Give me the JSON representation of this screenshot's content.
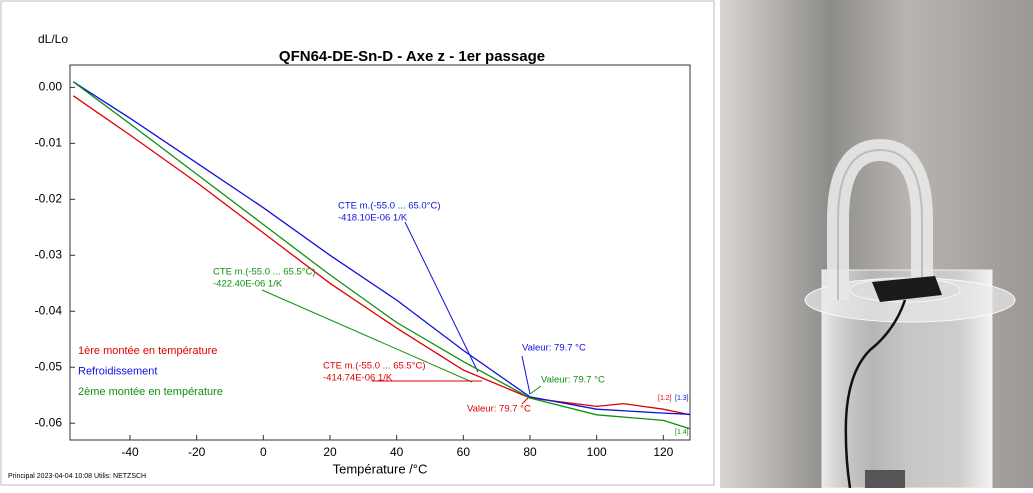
{
  "chart_data": {
    "type": "line",
    "title": "QFN64-DE-Sn-D - Axe z - 1er passage",
    "y_label": "dL/Lo",
    "x_label": "Température /°C",
    "footer": "Principal  2023-04-04 10:08  Utilis: NETZSCH",
    "xlim": [
      -58,
      128
    ],
    "ylim": [
      -0.063,
      0.004
    ],
    "xticks": [
      -40,
      -20,
      0,
      20,
      40,
      60,
      80,
      100,
      120
    ],
    "yticks": [
      {
        "value": 0,
        "label": "0.00"
      },
      -0.01,
      -0.02,
      -0.03,
      -0.04,
      -0.05,
      -0.06
    ],
    "grid": false,
    "legend": "lower left",
    "series": [
      {
        "name": "1ère montée en température",
        "color": "#e00000",
        "x": [
          -57,
          -40,
          -20,
          0,
          20,
          40,
          60,
          80,
          100,
          108,
          120,
          128
        ],
        "values": [
          -0.0015,
          -0.0085,
          -0.017,
          -0.026,
          -0.035,
          -0.043,
          -0.0505,
          -0.0555,
          -0.057,
          -0.0565,
          -0.0575,
          -0.0585
        ]
      },
      {
        "name": "Refroidissement",
        "color": "#1010e0",
        "x": [
          -57,
          -40,
          -20,
          0,
          20,
          40,
          60,
          80,
          100,
          120,
          128
        ],
        "values": [
          0.001,
          -0.0055,
          -0.0135,
          -0.0215,
          -0.03,
          -0.038,
          -0.047,
          -0.0553,
          -0.0575,
          -0.0582,
          -0.0584
        ]
      },
      {
        "name": "2ème montée en température",
        "color": "#109010",
        "x": [
          -57,
          -40,
          -20,
          0,
          20,
          40,
          60,
          80,
          100,
          120,
          128
        ],
        "values": [
          0.001,
          -0.0065,
          -0.0155,
          -0.0245,
          -0.0335,
          -0.042,
          -0.049,
          -0.0555,
          -0.0585,
          -0.0595,
          -0.061
        ]
      }
    ],
    "annotations": [
      {
        "lines": [
          "CTE m.(-55.0 ... 65.0°C)",
          "-418.10E-06 1/K"
        ],
        "color": "#1010e0"
      },
      {
        "lines": [
          "CTE m.(-55.0 ... 65.5°C)",
          "-422.40E-06 1/K"
        ],
        "color": "#109010"
      },
      {
        "lines": [
          "CTE m.(-55.0 ... 65.5°C)",
          "-414.74E-06 1/K"
        ],
        "color": "#e00000"
      },
      {
        "lines": [
          "Valeur: 79.7 °C"
        ],
        "color": "#1010e0"
      },
      {
        "lines": [
          "Valeur: 79.7 °C"
        ],
        "color": "#109010"
      },
      {
        "lines": [
          "Valeur: 79.7 °C"
        ],
        "color": "#e00000"
      },
      {
        "lines": [
          "[1.2]"
        ],
        "color": "#e00000"
      },
      {
        "lines": [
          "[1.3]"
        ],
        "color": "#1010e0"
      },
      {
        "lines": [
          "[1.4]"
        ],
        "color": "#109010"
      }
    ]
  }
}
